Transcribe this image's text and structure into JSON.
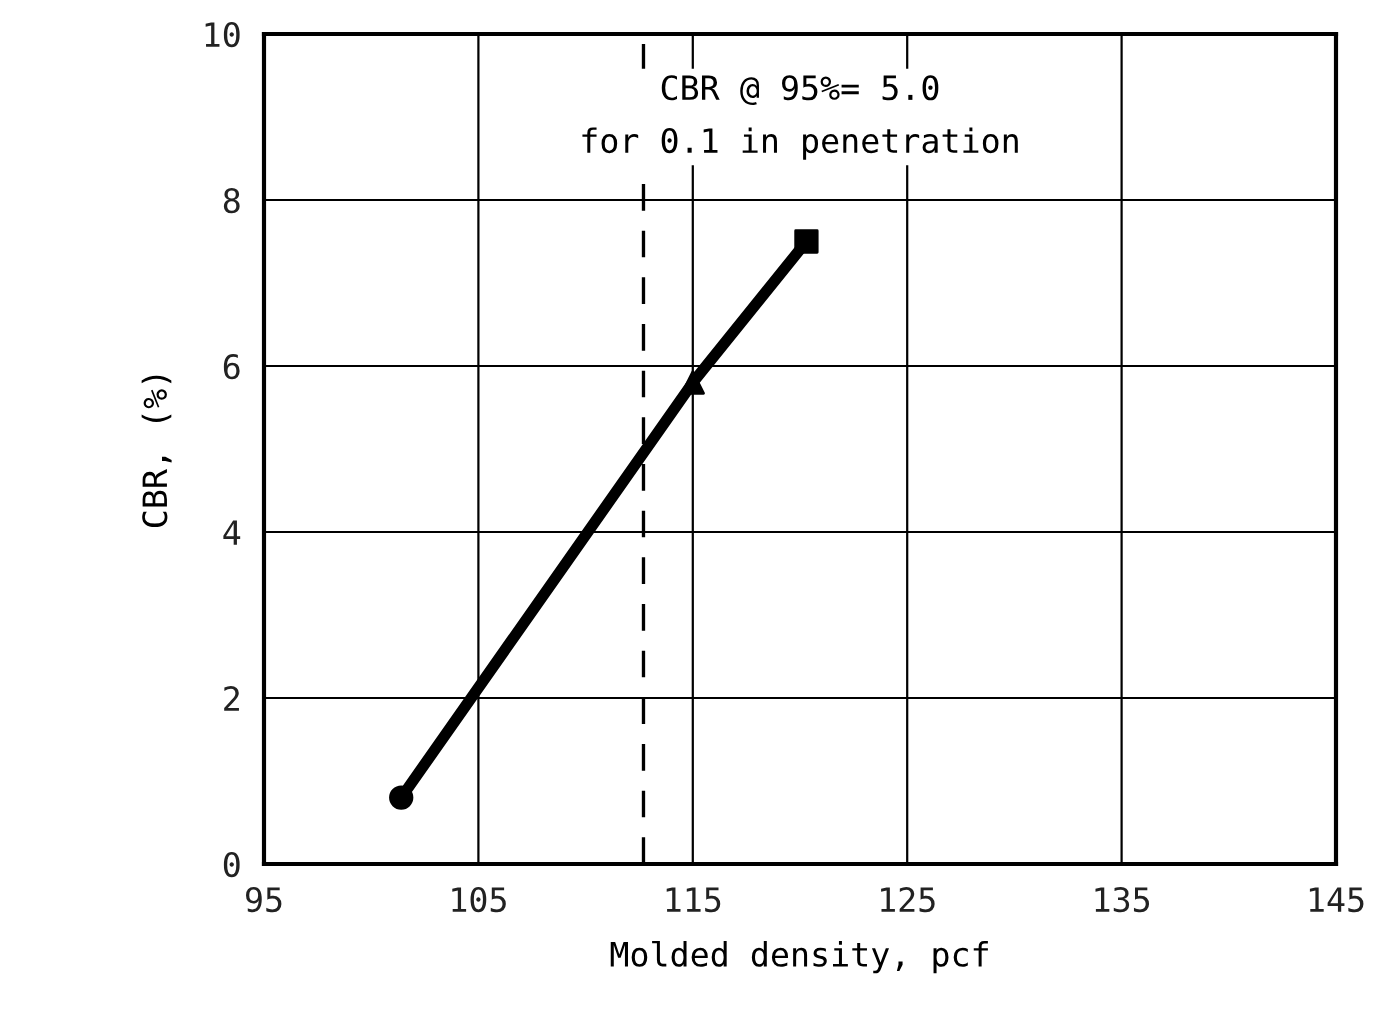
{
  "chart_data": {
    "type": "line",
    "xlabel": "Molded density, pcf",
    "ylabel": "CBR, (%)",
    "annotations": [
      "CBR @ 95%= 5.0\nfor 0.1 in penetration"
    ],
    "xlim": [
      95,
      145
    ],
    "xticks": [
      95,
      105,
      115,
      125,
      135,
      145
    ],
    "ylim": [
      0,
      10
    ],
    "yticks": [
      0,
      2,
      4,
      6,
      8,
      10
    ],
    "grid": true,
    "ref_lines": [
      {
        "axis": "x",
        "value": 112.7,
        "color": "#000000",
        "line_style": "dashed"
      }
    ],
    "series": [
      {
        "color": "#000000",
        "marker": "none",
        "line_style": "solid",
        "x": [
          101.4,
          115,
          120.3
        ],
        "values": [
          0.8,
          5.8,
          7.5
        ]
      },
      {
        "type": "scatter",
        "color": "#000000",
        "marker": "circle",
        "x": [
          101.4
        ],
        "values": [
          0.8
        ]
      },
      {
        "type": "scatter",
        "color": "#000000",
        "marker": "triangle",
        "x": [
          115
        ],
        "values": [
          5.8
        ]
      },
      {
        "type": "scatter",
        "color": "#000000",
        "marker": "square",
        "x": [
          120.3
        ],
        "values": [
          7.5
        ]
      }
    ]
  }
}
